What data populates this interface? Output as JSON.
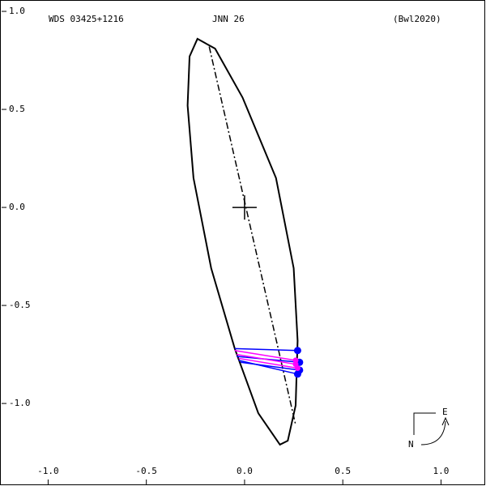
{
  "chart_data": {
    "type": "orbit",
    "title": "WDS 03425+1216",
    "subtitle": "JNN  26",
    "reference": "(Bwl2020)",
    "xlim": [
      -1.245,
      1.229
    ],
    "ylim": [
      -1.421,
      1.058
    ],
    "xticks": [
      -1.0,
      -0.5,
      0.0,
      0.5,
      1.0
    ],
    "yticks": [
      1.0,
      0.5,
      0.0,
      -0.5,
      -1.0
    ],
    "xtick_labels": [
      "-1.0",
      "-0.5",
      "0.0",
      "0.5",
      "1.0"
    ],
    "ytick_labels": [
      "1.0",
      "0.5",
      "0.0",
      "-0.5",
      "-1.0"
    ],
    "orbit": {
      "color": "#000000",
      "x": [
        -0.24,
        -0.15,
        -0.01,
        0.16,
        0.25,
        0.27,
        0.26,
        0.22,
        0.18,
        0.07,
        -0.05,
        -0.17,
        -0.26,
        -0.29,
        -0.28
      ],
      "y": [
        0.86,
        0.81,
        0.56,
        0.15,
        -0.31,
        -0.68,
        -1.01,
        -1.19,
        -1.21,
        -1.05,
        -0.72,
        -0.31,
        0.15,
        0.52,
        0.77
      ]
    },
    "line_of_nodes": {
      "x": [
        -0.18,
        0.26
      ],
      "y": [
        0.82,
        -1.11
      ]
    },
    "primary": {
      "x": 0,
      "y": 0
    },
    "observation_sets": [
      {
        "color": "#0000ff",
        "x": [
          0.27,
          0.28,
          0.28,
          0.27
        ],
        "y": [
          -0.73,
          -0.79,
          -0.83,
          -0.85
        ],
        "predicted_x": [
          -0.05,
          -0.04,
          -0.02,
          -0.03
        ],
        "predicted_y": [
          -0.72,
          -0.76,
          -0.79,
          -0.78
        ]
      },
      {
        "color": "#ff00ff",
        "x": [
          0.26,
          0.27,
          0.26
        ],
        "y": [
          -0.8,
          -0.82,
          -0.78
        ],
        "predicted_x": [
          -0.04,
          -0.03,
          -0.05
        ],
        "predicted_y": [
          -0.75,
          -0.77,
          -0.73
        ]
      }
    ],
    "compass": {
      "east": "E",
      "north": "N"
    }
  }
}
